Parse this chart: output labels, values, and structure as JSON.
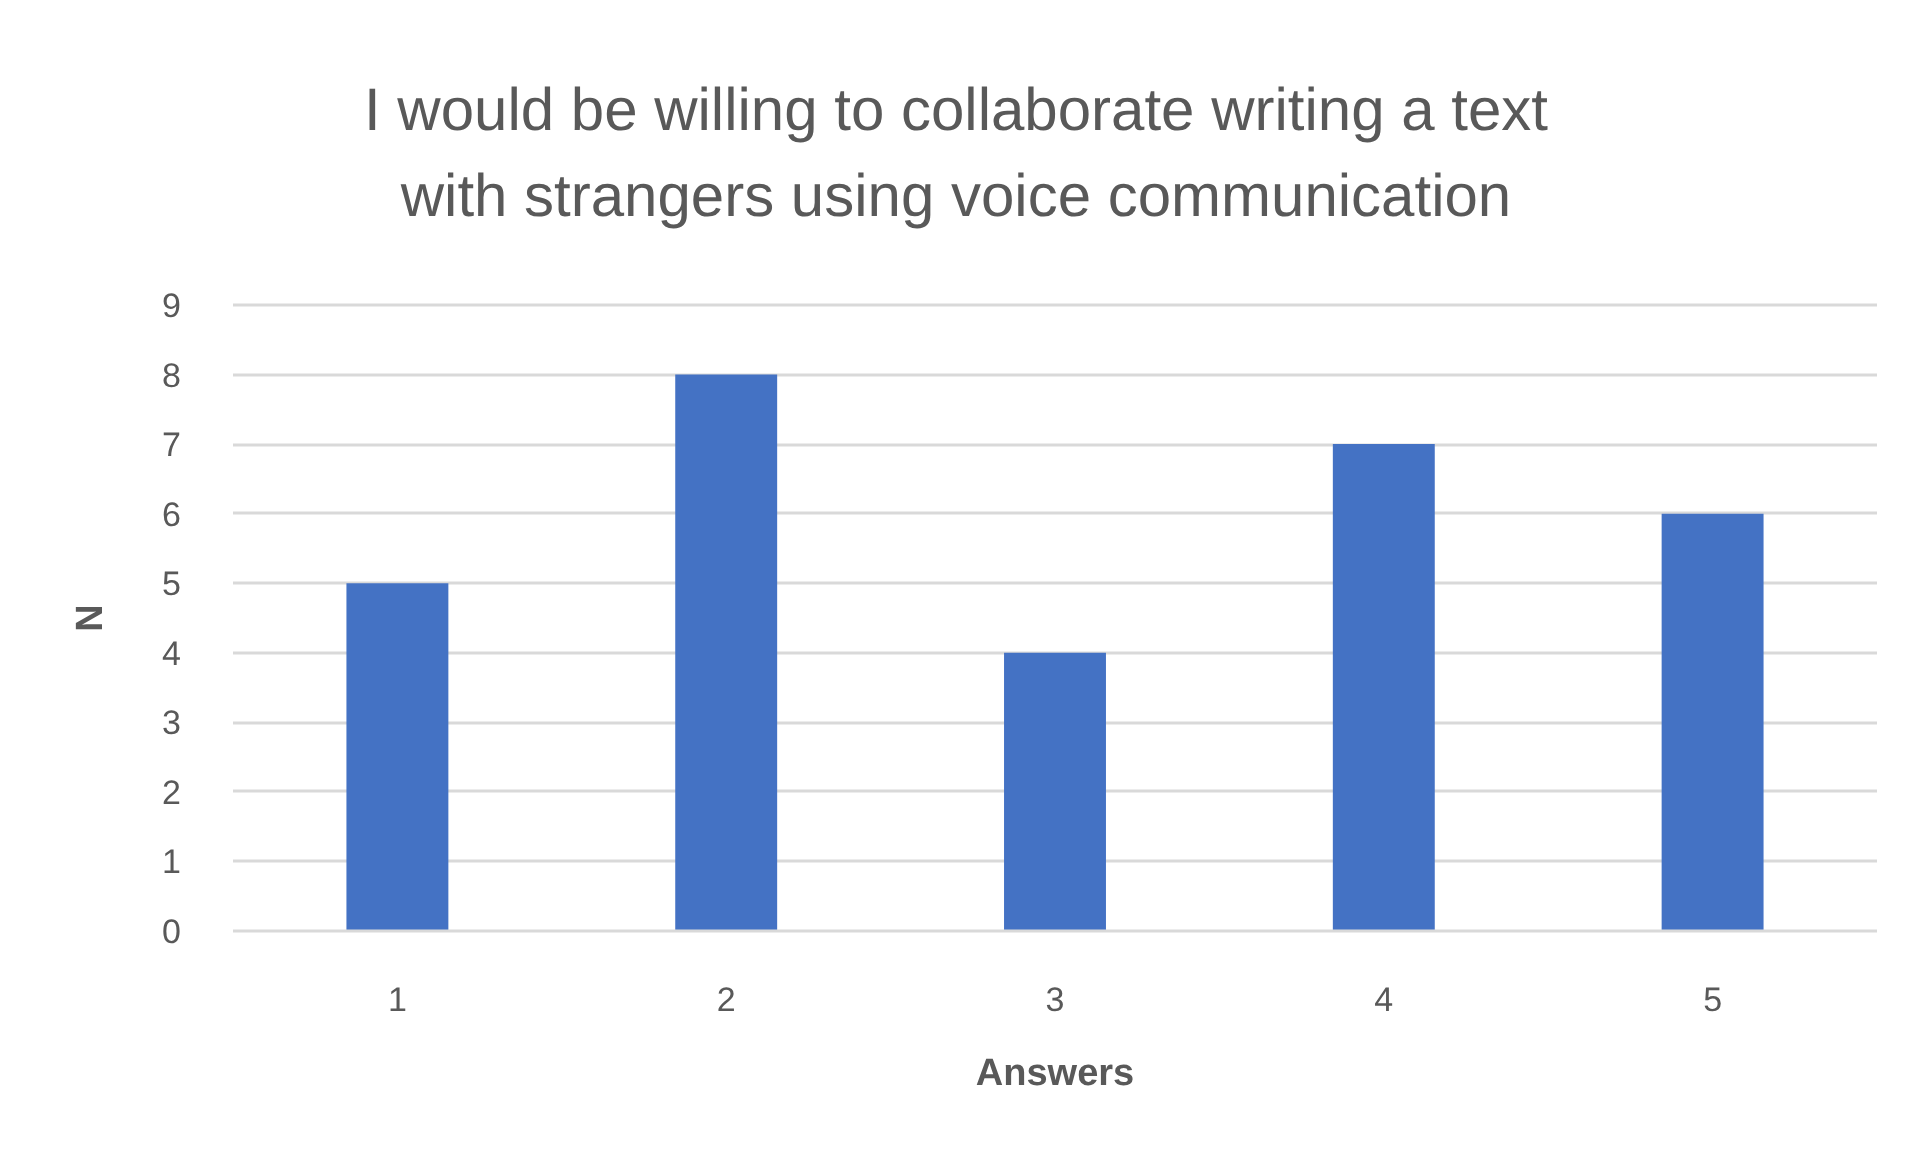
{
  "chart_data": {
    "type": "bar",
    "title": "I would be willing to collaborate writing a text with strangers using voice communication",
    "xlabel": "Answers",
    "ylabel": "N",
    "categories": [
      "1",
      "2",
      "3",
      "4",
      "5"
    ],
    "values": [
      5,
      8,
      4,
      7,
      6
    ],
    "color": "#4472c4",
    "ylim": [
      0,
      9
    ],
    "yticks": [
      0,
      1,
      2,
      3,
      4,
      5,
      6,
      7,
      8,
      9
    ],
    "grid": "y"
  }
}
